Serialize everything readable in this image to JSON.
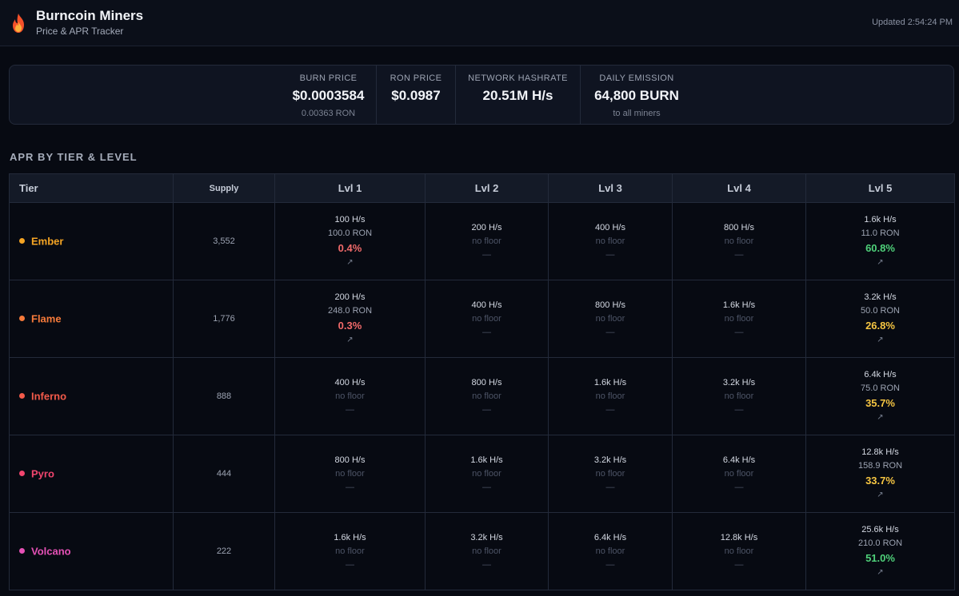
{
  "header": {
    "title": "Burncoin Miners",
    "subtitle": "Price & APR Tracker",
    "updated": "Updated 2:54:24 PM",
    "logo_icon": "fire-icon"
  },
  "stats": [
    {
      "label": "BURN PRICE",
      "value": "$0.0003584",
      "sub": "0.00363 RON"
    },
    {
      "label": "RON PRICE",
      "value": "$0.0987",
      "sub": ""
    },
    {
      "label": "NETWORK HASHRATE",
      "value": "20.51M H/s",
      "sub": ""
    },
    {
      "label": "DAILY EMISSION",
      "value": "64,800 BURN",
      "sub": "to all miners"
    }
  ],
  "section_title": "APR BY TIER & LEVEL",
  "table": {
    "headers": [
      "Tier",
      "Supply",
      "Lvl 1",
      "Lvl 2",
      "Lvl 3",
      "Lvl 4",
      "Lvl 5"
    ],
    "no_floor_text": "no floor",
    "dash_text": "—",
    "link_icon": "arrow-up-right-icon",
    "rows": [
      {
        "tier": "Ember",
        "color": "#f5a524",
        "supply": "3,552",
        "levels": [
          {
            "hashrate": "100 H/s",
            "floor": "100.0 RON",
            "apr": "0.4%",
            "apr_color": "#f16a6a"
          },
          {
            "hashrate": "200 H/s"
          },
          {
            "hashrate": "400 H/s"
          },
          {
            "hashrate": "800 H/s"
          },
          {
            "hashrate": "1.6k H/s",
            "floor": "11.0 RON",
            "apr": "60.8%",
            "apr_color": "#4fd17a"
          }
        ]
      },
      {
        "tier": "Flame",
        "color": "#f57a3a",
        "supply": "1,776",
        "levels": [
          {
            "hashrate": "200 H/s",
            "floor": "248.0 RON",
            "apr": "0.3%",
            "apr_color": "#f16a6a"
          },
          {
            "hashrate": "400 H/s"
          },
          {
            "hashrate": "800 H/s"
          },
          {
            "hashrate": "1.6k H/s"
          },
          {
            "hashrate": "3.2k H/s",
            "floor": "50.0 RON",
            "apr": "26.8%",
            "apr_color": "#f5c542"
          }
        ]
      },
      {
        "tier": "Inferno",
        "color": "#f25a4a",
        "supply": "888",
        "levels": [
          {
            "hashrate": "400 H/s"
          },
          {
            "hashrate": "800 H/s"
          },
          {
            "hashrate": "1.6k H/s"
          },
          {
            "hashrate": "3.2k H/s"
          },
          {
            "hashrate": "6.4k H/s",
            "floor": "75.0 RON",
            "apr": "35.7%",
            "apr_color": "#f5c542"
          }
        ]
      },
      {
        "tier": "Pyro",
        "color": "#f2456e",
        "supply": "444",
        "levels": [
          {
            "hashrate": "800 H/s"
          },
          {
            "hashrate": "1.6k H/s"
          },
          {
            "hashrate": "3.2k H/s"
          },
          {
            "hashrate": "6.4k H/s"
          },
          {
            "hashrate": "12.8k H/s",
            "floor": "158.9 RON",
            "apr": "33.7%",
            "apr_color": "#f5c542"
          }
        ]
      },
      {
        "tier": "Volcano",
        "color": "#e551b6",
        "supply": "222",
        "levels": [
          {
            "hashrate": "1.6k H/s"
          },
          {
            "hashrate": "3.2k H/s"
          },
          {
            "hashrate": "6.4k H/s"
          },
          {
            "hashrate": "12.8k H/s"
          },
          {
            "hashrate": "25.6k H/s",
            "floor": "210.0 RON",
            "apr": "51.0%",
            "apr_color": "#4fd17a"
          }
        ]
      }
    ]
  }
}
